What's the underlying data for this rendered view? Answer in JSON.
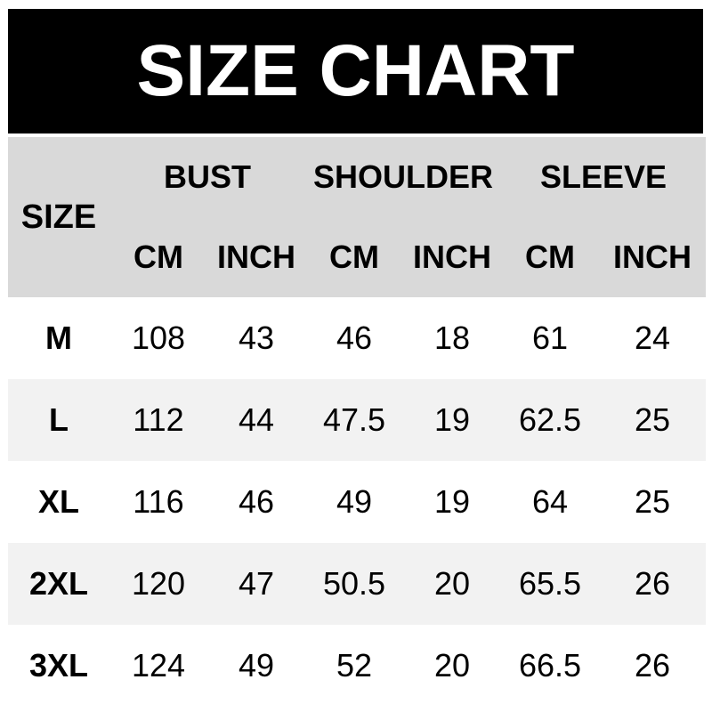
{
  "title": "SIZE CHART",
  "colors": {
    "banner_bg": "#000000",
    "banner_text": "#ffffff",
    "header_bg": "#d9d9d9",
    "row_bg": "#ffffff",
    "row_alt_bg": "#f2f2f2",
    "text": "#000000"
  },
  "chart_data": {
    "type": "table",
    "title": "SIZE CHART",
    "corner_header": "SIZE",
    "group_headers": [
      {
        "label": "BUST",
        "span": 2
      },
      {
        "label": "SHOULDER",
        "span": 2
      },
      {
        "label": "SLEEVE",
        "span": 2
      }
    ],
    "unit_headers": [
      "CM",
      "INCH",
      "CM",
      "INCH",
      "CM",
      "INCH"
    ],
    "rows": [
      {
        "size": "M",
        "values": [
          "108",
          "43",
          "46",
          "18",
          "61",
          "24"
        ]
      },
      {
        "size": "L",
        "values": [
          "112",
          "44",
          "47.5",
          "19",
          "62.5",
          "25"
        ]
      },
      {
        "size": "XL",
        "values": [
          "116",
          "46",
          "49",
          "19",
          "64",
          "25"
        ]
      },
      {
        "size": "2XL",
        "values": [
          "120",
          "47",
          "50.5",
          "20",
          "65.5",
          "26"
        ]
      },
      {
        "size": "3XL",
        "values": [
          "124",
          "49",
          "52",
          "20",
          "66.5",
          "26"
        ]
      }
    ]
  }
}
